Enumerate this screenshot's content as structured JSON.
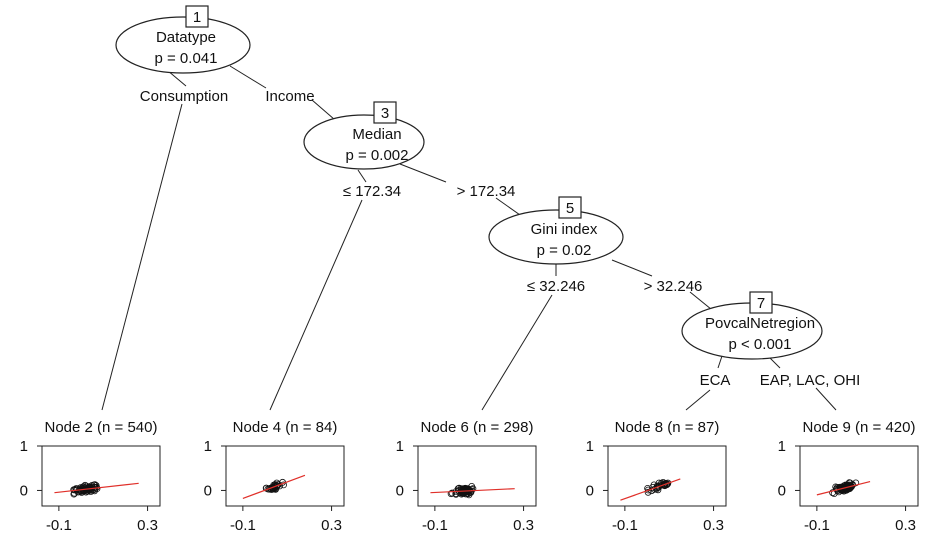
{
  "inner_nodes": [
    {
      "id": "1",
      "variable": "Datatype",
      "pvalue": "p = 0.041"
    },
    {
      "id": "3",
      "variable": "Median",
      "pvalue": "p = 0.002"
    },
    {
      "id": "5",
      "variable": "Gini index",
      "pvalue": "p = 0.02"
    },
    {
      "id": "7",
      "variable": "PovcalNetregion",
      "pvalue": "p < 0.001"
    }
  ],
  "edge_labels": [
    "Consumption",
    "Income",
    "≤ 172.34",
    "> 172.34",
    "≤ 32.246",
    "> 32.246",
    "ECA",
    "EAP, LAC, OHI"
  ],
  "terminal_nodes": [
    {
      "title": "Node 2 (n = 540)",
      "n": 540,
      "fit": [
        [
          -0.12,
          -0.05
        ],
        [
          0.26,
          0.16
        ]
      ]
    },
    {
      "title": "Node 4 (n = 84)",
      "n": 84,
      "fit": [
        [
          -0.1,
          -0.18
        ],
        [
          0.18,
          0.34
        ]
      ]
    },
    {
      "title": "Node 6 (n = 298)",
      "n": 298,
      "fit": [
        [
          -0.12,
          -0.05
        ],
        [
          0.26,
          0.04
        ]
      ]
    },
    {
      "title": "Node 8 (n = 87)",
      "n": 87,
      "fit": [
        [
          -0.12,
          -0.22
        ],
        [
          0.15,
          0.26
        ]
      ]
    },
    {
      "title": "Node 9 (n = 420)",
      "n": 420,
      "fit": [
        [
          -0.1,
          -0.1
        ],
        [
          0.14,
          0.2
        ]
      ]
    }
  ],
  "axes": {
    "y_ticks": [
      "1",
      "0"
    ],
    "x_ticks": [
      "-0.1",
      "0.3"
    ],
    "xlim": [
      -0.14,
      0.32
    ],
    "ylim": [
      -0.35,
      1.0
    ]
  },
  "colors": {
    "fit_line": "#e0302a",
    "points": "#111111"
  }
}
